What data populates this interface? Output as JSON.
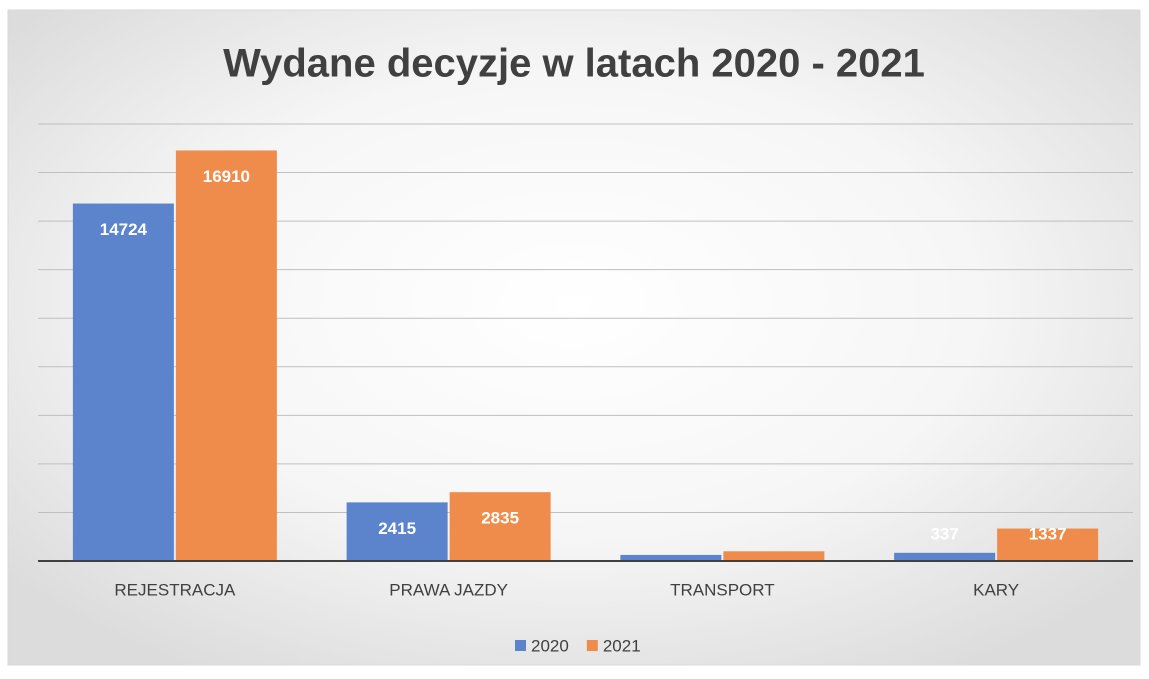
{
  "chart_data": {
    "type": "bar",
    "title": "Wydane decyzje w latach 2020 - 2021",
    "categories": [
      "REJESTRACJA",
      "PRAWA JAZDY",
      "TRANSPORT",
      "KARY"
    ],
    "series": [
      {
        "name": "2020",
        "color": "#5b84cc",
        "values": [
          14724,
          2415,
          250,
          337
        ],
        "value_labels": [
          14724,
          2415,
          null,
          337
        ]
      },
      {
        "name": "2021",
        "color": "#ef8c4b",
        "values": [
          16910,
          2835,
          400,
          1337
        ],
        "value_labels": [
          16910,
          2835,
          null,
          1337
        ]
      }
    ],
    "ylim": [
      0,
      18000
    ],
    "yticks": [
      0,
      2000,
      4000,
      6000,
      8000,
      10000,
      12000,
      14000,
      16000,
      18000
    ],
    "grid": true,
    "legend": "bottom"
  }
}
